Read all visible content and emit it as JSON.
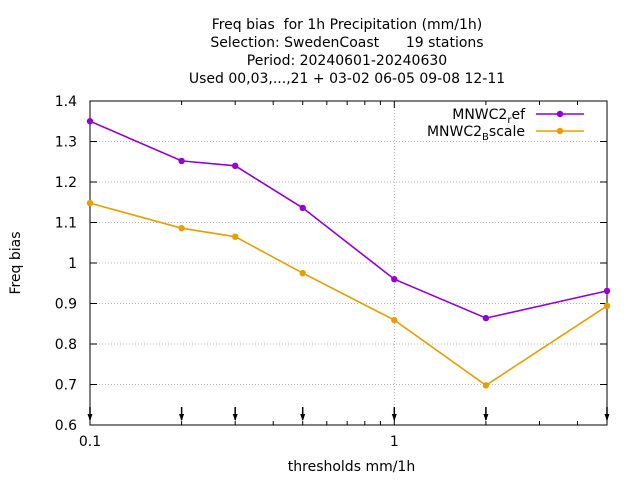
{
  "chart_data": {
    "type": "line",
    "title_lines": [
      "Freq bias  for 1h Precipitation (mm/1h)",
      "Selection: SwedenCoast      19 stations",
      "Period: 20240601-20240630",
      "Used 00,03,...,21 + 03-02 06-05 09-08 12-11"
    ],
    "xlabel": "thresholds mm/1h",
    "ylabel": "Freq bias",
    "x_scale": "log",
    "xlim": [
      0.1,
      5
    ],
    "ylim": [
      0.6,
      1.4
    ],
    "xticks": [
      0.1,
      1
    ],
    "xtick_labels": [
      "0.1",
      "1"
    ],
    "yticks": [
      0.6,
      0.7,
      0.8,
      0.9,
      1.0,
      1.1,
      1.2,
      1.3,
      1.4
    ],
    "ytick_labels": [
      "0.6",
      "0.7",
      "0.8",
      "0.9",
      "1",
      "1.1",
      "1.2",
      "1.3",
      "1.4"
    ],
    "grid": true,
    "legend_position": "top-right",
    "threshold_markers": [
      0.1,
      0.2,
      0.3,
      0.5,
      1,
      2,
      5
    ],
    "series": [
      {
        "legend_main": "MNWC2",
        "legend_sub": "r",
        "legend_tail": "ef",
        "color": "#9400d3",
        "x": [
          0.1,
          0.2,
          0.3,
          0.5,
          1,
          2,
          5
        ],
        "y": [
          1.35,
          1.252,
          1.24,
          1.136,
          0.96,
          0.864,
          0.931
        ]
      },
      {
        "legend_main": "MNWC2",
        "legend_sub": "B",
        "legend_tail": "scale",
        "color": "#e69f00",
        "x": [
          0.1,
          0.2,
          0.3,
          0.5,
          1,
          2,
          5
        ],
        "y": [
          1.148,
          1.086,
          1.065,
          0.975,
          0.859,
          0.698,
          0.894
        ]
      }
    ]
  }
}
